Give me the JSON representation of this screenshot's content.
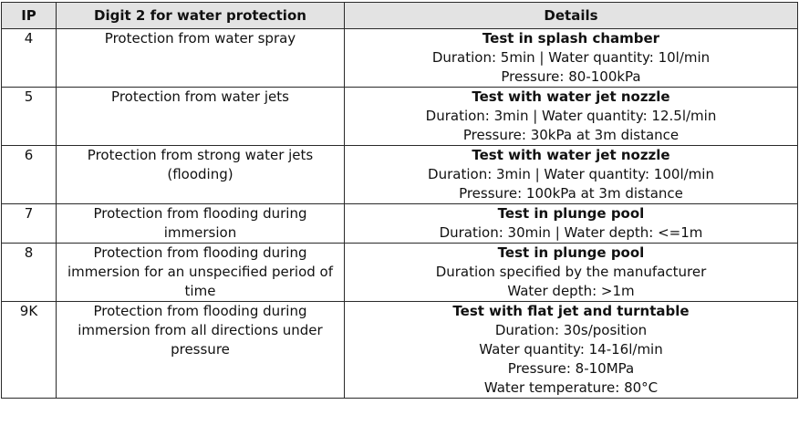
{
  "table": {
    "headers": {
      "ip": "IP",
      "digit": "Digit 2 for water protection",
      "details": "Details"
    },
    "rows": [
      {
        "ip": "4",
        "desc": "Protection from water spray",
        "title": "Test in splash chamber",
        "lines": [
          "Duration: 5min | Water quantity: 10l/min",
          "Pressure: 80-100kPa"
        ]
      },
      {
        "ip": "5",
        "desc": "Protection from water jets",
        "title": "Test with water jet nozzle",
        "lines": [
          "Duration: 3min | Water quantity: 12.5l/min",
          "Pressure: 30kPa at 3m distance"
        ]
      },
      {
        "ip": "6",
        "desc": "Protection from strong water jets (flooding)",
        "title": "Test with water jet nozzle",
        "lines": [
          "Duration: 3min | Water quantity: 100l/min",
          "Pressure: 100kPa at 3m distance"
        ]
      },
      {
        "ip": "7",
        "desc": "Protection from flooding during immersion",
        "title": "Test in plunge pool",
        "lines": [
          "Duration: 30min | Water depth: <=1m"
        ]
      },
      {
        "ip": "8",
        "desc": "Protection from flooding during immersion for an unspecified period of time",
        "title": "Test in plunge pool",
        "lines": [
          "Duration specified by the manufacturer",
          "Water depth: >1m"
        ]
      },
      {
        "ip": "9K",
        "desc": "Protection from flooding during immersion from all directions under pressure",
        "title": "Test with flat jet and turntable",
        "lines": [
          "Duration: 30s/position",
          "Water quantity: 14-16l/min",
          "Pressure: 8-10MPa",
          "Water temperature: 80°C"
        ]
      }
    ]
  }
}
